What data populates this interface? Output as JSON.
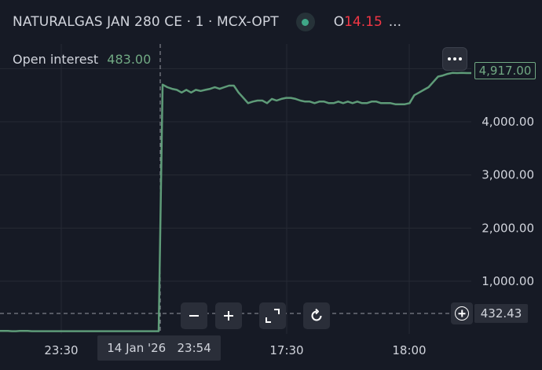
{
  "header": {
    "symbol": "NATURALGAS JAN 280 CE · 1 · MCX-OPT",
    "ohlc_label": "O",
    "ohlc_value": "14.15",
    "more": "...",
    "status_color": "#3fa887"
  },
  "legend": {
    "label": "Open interest",
    "value": "483.00"
  },
  "last_value_badge": "4,917.00",
  "crosshair": {
    "y_value": "432.43",
    "x_label": "14 Jan '26   23:54"
  },
  "colors": {
    "line": "#5e9b78",
    "accent_value": "#71a983",
    "negative": "#f23645",
    "background": "#161a25"
  },
  "toolbar": {
    "zoom_out_icon": "minus-icon",
    "zoom_in_icon": "plus-icon",
    "fullscreen_icon": "expand-icon",
    "reset_icon": "reset-icon"
  },
  "chart_data": {
    "type": "line",
    "title": "",
    "xlabel": "",
    "ylabel": "",
    "y_ticks": [
      "1,000.00",
      "2,000.00",
      "3,000.00",
      "4,000.00"
    ],
    "x_ticks": [
      "23:30",
      "17:30",
      "18:00"
    ],
    "ylim": [
      0,
      5400
    ],
    "grid": true,
    "series": [
      {
        "values": [
          65,
          65,
          65,
          60,
          60,
          65,
          65,
          65,
          60,
          60,
          60,
          60,
          60,
          60,
          60,
          60,
          60,
          60,
          60,
          60,
          60,
          60,
          60,
          60,
          60,
          60,
          60,
          60,
          60,
          60,
          60,
          60,
          60,
          60,
          60,
          60,
          60,
          60,
          60,
          60,
          60,
          4700,
          4650,
          4620,
          4600,
          4550,
          4600,
          4550,
          4600,
          4580,
          4600,
          4620,
          4650,
          4620,
          4650,
          4680,
          4680,
          4550,
          4450,
          4350,
          4380,
          4400,
          4400,
          4350,
          4430,
          4400,
          4430,
          4450,
          4450,
          4430,
          4400,
          4380,
          4380,
          4350,
          4380,
          4380,
          4350,
          4350,
          4380,
          4350,
          4380,
          4350,
          4380,
          4350,
          4350,
          4380,
          4380,
          4350,
          4350,
          4350,
          4330,
          4330,
          4330,
          4350,
          4500,
          4550,
          4600,
          4650,
          4750,
          4850,
          4870,
          4900,
          4920,
          4917,
          4920,
          4917,
          4917
        ]
      }
    ]
  }
}
